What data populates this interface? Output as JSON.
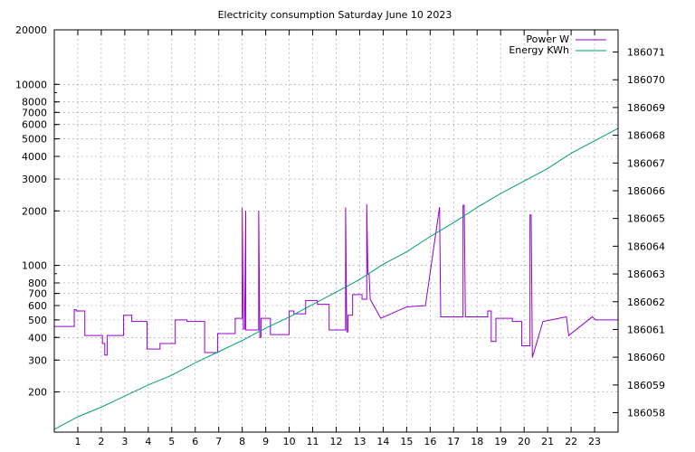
{
  "chart_data": {
    "type": "line",
    "title": "Electricity consumption Saturday June 10 2023",
    "xlabel": "",
    "ylabel": "",
    "y2label": "",
    "xlim": [
      0,
      24
    ],
    "x_ticks": [
      "1",
      "2",
      "3",
      "4",
      "5",
      "6",
      "7",
      "8",
      "9",
      "10",
      "11",
      "12",
      "13",
      "14",
      "15",
      "16",
      "17",
      "18",
      "19",
      "20",
      "21",
      "22",
      "23"
    ],
    "ylim": [
      120,
      20000
    ],
    "y_scale": "log",
    "y_ticks": [
      "200",
      "300",
      "400",
      "500",
      "600",
      "700",
      "800",
      "1000",
      "2000",
      "3000",
      "4000",
      "5000",
      "6000",
      "7000",
      "8000",
      "10000",
      "20000"
    ],
    "y2lim": [
      186057.3,
      186071.8
    ],
    "y2_ticks": [
      "186058",
      "186059",
      "186060",
      "186061",
      "186062",
      "186063",
      "186064",
      "186065",
      "186066",
      "186067",
      "186068",
      "186069",
      "186070",
      "186071"
    ],
    "grid": true,
    "legend_position": "top-right",
    "series": [
      {
        "name": "Power W",
        "axis": "y1",
        "color": "#9400d3",
        "x": [
          0,
          0.85,
          0.85,
          0.93,
          0.93,
          1.3,
          1.3,
          2.05,
          2.05,
          2.15,
          2.15,
          2.25,
          2.25,
          2.95,
          2.95,
          3.3,
          3.3,
          3.95,
          3.95,
          4.5,
          4.5,
          5.15,
          5.15,
          5.65,
          5.65,
          6.4,
          6.4,
          6.95,
          6.95,
          7.7,
          7.7,
          8.0,
          8.0,
          8.05,
          8.1,
          8.15,
          8.15,
          8.7,
          8.7,
          8.75,
          8.8,
          8.8,
          9.2,
          9.2,
          10.0,
          10.0,
          10.2,
          10.2,
          10.7,
          10.7,
          11.2,
          11.2,
          11.7,
          11.7,
          12.4,
          12.4,
          12.45,
          12.5,
          12.5,
          12.7,
          12.7,
          13.1,
          13.1,
          13.3,
          13.3,
          13.35,
          13.4,
          13.45,
          13.45,
          13.9,
          13.9,
          15.0,
          15.0,
          15.8,
          15.8,
          16.4,
          16.4,
          16.45,
          16.5,
          16.5,
          17.4,
          17.4,
          17.45,
          17.5,
          17.5,
          18.45,
          18.45,
          18.6,
          18.6,
          18.8,
          18.8,
          19.5,
          19.5,
          19.9,
          19.9,
          20.25,
          20.25,
          20.3,
          20.35,
          20.35,
          20.8,
          20.8,
          21.8,
          21.8,
          21.9,
          21.9,
          22.9,
          22.9,
          23.05,
          23.05,
          24.0
        ],
        "values": [
          460,
          460,
          570,
          570,
          560,
          560,
          410,
          410,
          370,
          370,
          320,
          320,
          410,
          410,
          530,
          530,
          490,
          490,
          345,
          345,
          370,
          370,
          500,
          500,
          490,
          490,
          330,
          330,
          420,
          420,
          510,
          510,
          2080,
          445,
          445,
          2000,
          440,
          440,
          2000,
          400,
          400,
          510,
          510,
          415,
          415,
          560,
          560,
          540,
          540,
          640,
          640,
          610,
          610,
          440,
          440,
          2090,
          430,
          430,
          530,
          530,
          690,
          690,
          650,
          650,
          2180,
          900,
          900,
          650,
          650,
          510,
          510,
          590,
          590,
          600,
          600,
          2100,
          2100,
          520,
          520,
          520,
          520,
          2150,
          2150,
          520,
          520,
          520,
          560,
          560,
          380,
          380,
          510,
          510,
          490,
          490,
          360,
          360,
          1900,
          1900,
          310,
          310,
          490,
          490,
          520,
          520,
          410,
          410,
          520,
          520,
          500,
          500,
          500
        ]
      },
      {
        "name": "Energy KWh",
        "axis": "y2",
        "color": "#009e73",
        "x": [
          0,
          1,
          2,
          3,
          4,
          5,
          6,
          7,
          8,
          9,
          10,
          11,
          12,
          13,
          14,
          15,
          16,
          17,
          18,
          19,
          20,
          21,
          22,
          23,
          24
        ],
        "values": [
          186057.4,
          186057.85,
          186058.2,
          186058.6,
          186059.0,
          186059.35,
          186059.8,
          186060.2,
          186060.6,
          186061.05,
          186061.45,
          186061.9,
          186062.35,
          186062.8,
          186063.35,
          186063.8,
          186064.35,
          186064.85,
          186065.4,
          186065.9,
          186066.35,
          186066.8,
          186067.35,
          186067.8,
          186068.25
        ]
      }
    ]
  }
}
